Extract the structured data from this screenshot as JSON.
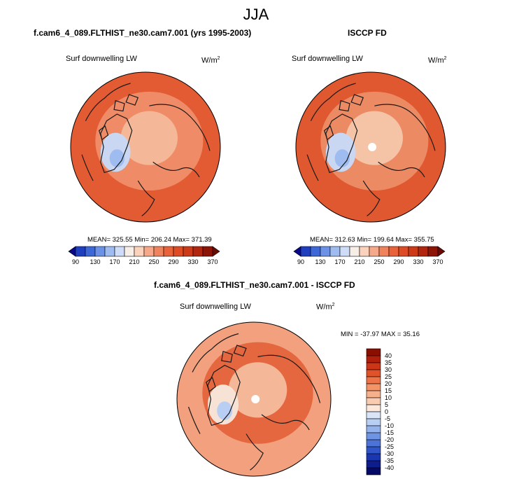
{
  "figure": {
    "title": "JJA",
    "colors": {
      "coastline": "#1a1a1a",
      "missing": "#ffffff"
    }
  },
  "chart_data": [
    {
      "type": "heatmap",
      "projection": "polar-stereographic-north",
      "title": "f.cam6_4_089.FLTHIST_ne30.cam7.001 (yrs 1995-2003)",
      "variable": "Surf downwelling LW",
      "units": "W/m",
      "units_exp": "2",
      "stats": {
        "mean": "325.55",
        "min": "206.24",
        "max": "371.39"
      },
      "stats_text": "MEAN= 325.55   Min= 206.24   Max= 371.39",
      "colorbar": {
        "orientation": "horizontal",
        "levels": [
          90,
          110,
          130,
          150,
          170,
          190,
          210,
          230,
          250,
          270,
          290,
          310,
          330,
          350,
          370
        ],
        "labels": [
          "90",
          "130",
          "170",
          "210",
          "250",
          "290",
          "330",
          "370"
        ],
        "colors": [
          "#08088a",
          "#1f3fbf",
          "#3d68d6",
          "#6b92e6",
          "#9fbcf1",
          "#cfdcf7",
          "#f7eee8",
          "#fbd3bd",
          "#f6a98a",
          "#ef835e",
          "#e8623a",
          "#dd4c25",
          "#cc3a18",
          "#b0260e",
          "#8c1507",
          "#6b0a02"
        ]
      },
      "fill": {
        "ocean": "#e35b33",
        "inner": "#ef8c67",
        "core": "#f4b898",
        "greenland": "#c9d7f2",
        "greenland_core": "#9fbcf1"
      }
    },
    {
      "type": "heatmap",
      "projection": "polar-stereographic-north",
      "title": "ISCCP FD",
      "variable": "Surf downwelling LW",
      "units": "W/m",
      "units_exp": "2",
      "stats": {
        "mean": "312.63",
        "min": "199.64",
        "max": "355.75"
      },
      "stats_text": "MEAN= 312.63   Min= 199.64   Max= 355.75",
      "colorbar": {
        "orientation": "horizontal",
        "levels": [
          90,
          110,
          130,
          150,
          170,
          190,
          210,
          230,
          250,
          270,
          290,
          310,
          330,
          350,
          370
        ],
        "labels": [
          "90",
          "130",
          "170",
          "210",
          "250",
          "290",
          "330",
          "370"
        ],
        "colors": [
          "#08088a",
          "#1f3fbf",
          "#3d68d6",
          "#6b92e6",
          "#9fbcf1",
          "#cfdcf7",
          "#f7eee8",
          "#fbd3bd",
          "#f6a98a",
          "#ef835e",
          "#e8623a",
          "#dd4c25",
          "#cc3a18",
          "#b0260e",
          "#8c1507",
          "#6b0a02"
        ]
      },
      "fill": {
        "ocean": "#e0582f",
        "inner": "#ec8a64",
        "core": "#f5c3a6",
        "greenland": "#c9d7f2",
        "greenland_core": "#9fbcf1"
      }
    },
    {
      "type": "heatmap",
      "projection": "polar-stereographic-north",
      "title": "f.cam6_4_089.FLTHIST_ne30.cam7.001 - ISCCP FD",
      "variable": "Surf downwelling LW",
      "units": "W/m",
      "units_exp": "2",
      "stats": {
        "min": "-37.97",
        "max": "35.16"
      },
      "stats_text": "MIN = -37.97 MAX =  35.16",
      "colorbar": {
        "orientation": "vertical",
        "levels": [
          -40,
          -35,
          -30,
          -25,
          -20,
          -15,
          -10,
          -5,
          0,
          5,
          10,
          15,
          20,
          25,
          30,
          35,
          40
        ],
        "labels": [
          "40",
          "35",
          "30",
          "25",
          "20",
          "15",
          "10",
          "5",
          "0",
          "-5",
          "-10",
          "-15",
          "-20",
          "-25",
          "-30",
          "-35",
          "-40"
        ],
        "colors": [
          "#8a0f00",
          "#b01e0c",
          "#cc3516",
          "#e0532a",
          "#ec7448",
          "#f29468",
          "#f6b08c",
          "#f9ccb2",
          "#fbe8da",
          "#d9e4f7",
          "#b8cef3",
          "#94b3ec",
          "#6f94e3",
          "#4d73d6",
          "#2f55c8",
          "#1a36b0",
          "#0d1d8c",
          "#050a66"
        ]
      },
      "fill": {
        "ocean": "#f2a07e",
        "inner": "#e5673f",
        "core": "#f4b898",
        "greenland": "#f7e3d6",
        "greenland_core": "#b8cef3"
      }
    }
  ]
}
